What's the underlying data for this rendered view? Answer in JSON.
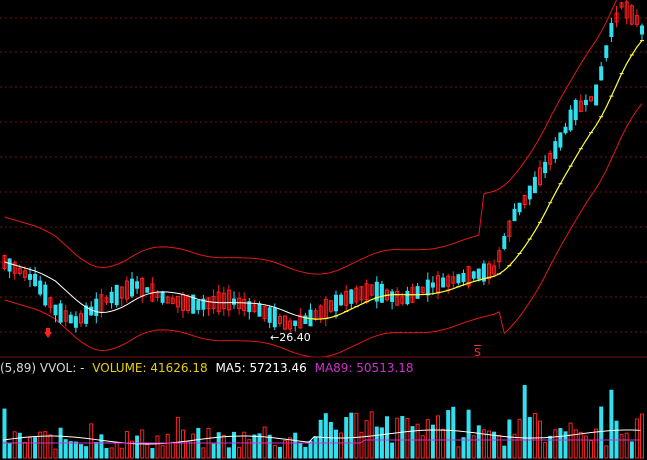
{
  "info_bar": {
    "vvol_label": "(5,89)  VVOL: -",
    "volume_label": "VOLUME: 41626.18",
    "ma5_label": "MA5: 57213.46",
    "ma89_label": "MA89: 50513.18"
  },
  "annotations": {
    "low_price": "26.40",
    "signal_mark": "S"
  },
  "colors": {
    "background": "#000000",
    "up_candle": "#ff2020",
    "down_candle": "#30e0f0",
    "bollinger": "#e01818",
    "moving_average_upper": "#ffffff",
    "moving_average_mid": "#ffff40",
    "volume_text": "#e8d000",
    "ma5_text": "#ffffff",
    "ma89_text": "#cc33cc",
    "gridline": "#7a1010"
  },
  "chart_data": {
    "type": "candlestick",
    "price_panel": {
      "annotated_low": 26.4,
      "trend": "sideways then strong rise"
    },
    "volume_panel": {
      "volume": 41626.18,
      "ma5": 57213.46,
      "ma89": 50513.18
    }
  }
}
